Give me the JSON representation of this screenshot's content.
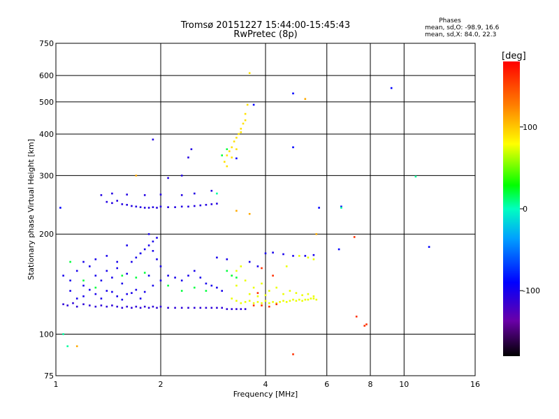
{
  "chart_data": {
    "type": "scatter",
    "title": "Tromsø 20151227 15:44:00-15:45:43",
    "subtitle": "RwPretec (8p)",
    "xlabel": "Frequency [MHz]",
    "ylabel": "Stationary phase Virtual Height [km]",
    "x_scale": "log",
    "y_scale": "log",
    "xlim": [
      1,
      16
    ],
    "ylim": [
      75,
      750
    ],
    "x_ticks": [
      1,
      2,
      4,
      6,
      8,
      10,
      16
    ],
    "x_tick_labels": [
      "1",
      "2",
      "4",
      "6",
      "8",
      "10",
      "16"
    ],
    "y_ticks": [
      75,
      100,
      200,
      300,
      400,
      500,
      600,
      750
    ],
    "y_tick_labels": [
      "75",
      "100",
      "200",
      "300",
      "400",
      "500",
      "600",
      "750"
    ],
    "grid": true,
    "info": {
      "heading": "Phases",
      "line1": "mean, sd,O: -98.9, 16.6",
      "line2": "mean, sd,X:  84.0, 22.3"
    },
    "colorbar": {
      "label": "[deg]",
      "range": [
        -180,
        180
      ],
      "ticks": [
        100,
        0,
        -100
      ],
      "tick_labels": [
        "100",
        "0",
        "-100"
      ]
    },
    "clusters": [
      {
        "name": "lower-O-trace",
        "color_phase": -110,
        "points": [
          [
            1.05,
            123
          ],
          [
            1.08,
            122
          ],
          [
            1.12,
            124
          ],
          [
            1.15,
            121
          ],
          [
            1.2,
            123
          ],
          [
            1.25,
            122
          ],
          [
            1.3,
            121
          ],
          [
            1.35,
            122
          ],
          [
            1.4,
            121
          ],
          [
            1.45,
            122
          ],
          [
            1.5,
            121
          ],
          [
            1.55,
            120
          ],
          [
            1.6,
            121
          ],
          [
            1.65,
            120
          ],
          [
            1.7,
            121
          ],
          [
            1.75,
            120
          ],
          [
            1.8,
            121
          ],
          [
            1.85,
            120
          ],
          [
            1.9,
            121
          ],
          [
            1.95,
            120
          ],
          [
            2.0,
            121
          ],
          [
            2.1,
            120
          ],
          [
            2.2,
            120
          ],
          [
            2.3,
            120
          ],
          [
            2.4,
            120
          ],
          [
            2.5,
            120
          ],
          [
            2.6,
            120
          ],
          [
            2.7,
            120
          ],
          [
            2.8,
            120
          ],
          [
            2.9,
            120
          ],
          [
            3.0,
            120
          ],
          [
            3.1,
            119
          ],
          [
            3.2,
            119
          ],
          [
            3.3,
            119
          ],
          [
            3.4,
            119
          ],
          [
            3.5,
            119
          ]
        ]
      },
      {
        "name": "F-trace-250",
        "color_phase": -105,
        "points": [
          [
            1.4,
            250
          ],
          [
            1.45,
            248
          ],
          [
            1.5,
            252
          ],
          [
            1.55,
            246
          ],
          [
            1.6,
            245
          ],
          [
            1.65,
            243
          ],
          [
            1.7,
            242
          ],
          [
            1.75,
            241
          ],
          [
            1.8,
            240
          ],
          [
            1.85,
            240
          ],
          [
            1.9,
            241
          ],
          [
            1.95,
            240
          ],
          [
            2.0,
            242
          ],
          [
            2.1,
            241
          ],
          [
            2.2,
            241
          ],
          [
            2.3,
            242
          ],
          [
            2.4,
            242
          ],
          [
            2.5,
            243
          ],
          [
            2.6,
            244
          ],
          [
            2.7,
            245
          ],
          [
            2.8,
            246
          ],
          [
            2.9,
            247
          ],
          [
            1.35,
            262
          ],
          [
            1.45,
            265
          ],
          [
            1.6,
            263
          ],
          [
            1.8,
            262
          ],
          [
            2.0,
            263
          ],
          [
            2.3,
            262
          ],
          [
            2.5,
            265
          ],
          [
            2.8,
            270
          ],
          [
            2.1,
            295
          ],
          [
            2.3,
            300
          ],
          [
            2.4,
            340
          ],
          [
            2.45,
            360
          ],
          [
            1.9,
            385
          ]
        ]
      },
      {
        "name": "F-trace-X",
        "color_phase": 90,
        "points": [
          [
            3.05,
            330
          ],
          [
            3.1,
            345
          ],
          [
            3.15,
            355
          ],
          [
            3.2,
            365
          ],
          [
            3.25,
            380
          ],
          [
            3.3,
            390
          ],
          [
            3.35,
            400
          ],
          [
            3.4,
            415
          ],
          [
            3.45,
            430
          ],
          [
            3.5,
            460
          ],
          [
            3.55,
            490
          ],
          [
            3.1,
            320
          ],
          [
            3.2,
            340
          ],
          [
            3.3,
            360
          ],
          [
            3.4,
            405
          ],
          [
            3.5,
            440
          ],
          [
            3.6,
            610
          ]
        ]
      },
      {
        "name": "mid-O-band",
        "color_phase": -100,
        "points": [
          [
            1.05,
            150
          ],
          [
            1.1,
            145
          ],
          [
            1.15,
            155
          ],
          [
            1.2,
            140
          ],
          [
            1.25,
            160
          ],
          [
            1.3,
            150
          ],
          [
            1.35,
            145
          ],
          [
            1.4,
            155
          ],
          [
            1.45,
            148
          ],
          [
            1.5,
            158
          ],
          [
            1.55,
            142
          ],
          [
            1.6,
            152
          ],
          [
            1.65,
            165
          ],
          [
            1.7,
            170
          ],
          [
            1.75,
            175
          ],
          [
            1.8,
            180
          ],
          [
            1.85,
            185
          ],
          [
            1.9,
            178
          ],
          [
            1.95,
            168
          ],
          [
            2.0,
            160
          ],
          [
            1.2,
            130
          ],
          [
            1.3,
            132
          ],
          [
            1.4,
            135
          ],
          [
            1.5,
            130
          ],
          [
            1.6,
            132
          ],
          [
            1.7,
            136
          ],
          [
            1.8,
            134
          ],
          [
            1.9,
            140
          ],
          [
            2.0,
            145
          ],
          [
            2.1,
            150
          ],
          [
            2.2,
            148
          ],
          [
            2.3,
            145
          ],
          [
            2.4,
            150
          ],
          [
            2.5,
            155
          ],
          [
            2.6,
            148
          ],
          [
            2.7,
            142
          ],
          [
            2.8,
            140
          ],
          [
            2.9,
            138
          ],
          [
            3.0,
            135
          ],
          [
            1.1,
            135
          ],
          [
            1.15,
            128
          ],
          [
            1.25,
            136
          ],
          [
            1.35,
            128
          ],
          [
            1.45,
            134
          ],
          [
            1.55,
            127
          ],
          [
            1.65,
            133
          ],
          [
            1.75,
            128
          ],
          [
            1.85,
            150
          ],
          [
            1.9,
            190
          ],
          [
            1.95,
            195
          ],
          [
            1.85,
            200
          ],
          [
            1.75,
            175
          ],
          [
            1.6,
            185
          ],
          [
            1.5,
            165
          ],
          [
            1.4,
            172
          ],
          [
            1.3,
            168
          ],
          [
            1.2,
            165
          ],
          [
            4.0,
            175
          ],
          [
            4.2,
            176
          ],
          [
            4.5,
            174
          ],
          [
            4.8,
            172
          ],
          [
            5.2,
            172
          ],
          [
            5.5,
            173
          ],
          [
            3.8,
            160
          ],
          [
            3.6,
            165
          ],
          [
            2.9,
            170
          ],
          [
            3.1,
            168
          ]
        ]
      },
      {
        "name": "mid-X-band",
        "color_phase": 75,
        "points": [
          [
            3.2,
            128
          ],
          [
            3.3,
            126
          ],
          [
            3.4,
            124
          ],
          [
            3.5,
            125
          ],
          [
            3.6,
            126
          ],
          [
            3.7,
            124
          ],
          [
            3.8,
            125
          ],
          [
            3.9,
            124
          ],
          [
            4.0,
            126
          ],
          [
            4.1,
            124
          ],
          [
            4.2,
            125
          ],
          [
            4.3,
            124
          ],
          [
            4.4,
            125
          ],
          [
            4.5,
            126
          ],
          [
            4.6,
            125
          ],
          [
            4.7,
            126
          ],
          [
            4.8,
            127
          ],
          [
            4.9,
            126
          ],
          [
            5.0,
            127
          ],
          [
            5.1,
            126
          ],
          [
            5.2,
            127
          ],
          [
            5.3,
            127
          ],
          [
            5.4,
            128
          ],
          [
            5.5,
            128
          ],
          [
            5.6,
            127
          ],
          [
            3.3,
            140
          ],
          [
            3.5,
            145
          ],
          [
            3.7,
            138
          ],
          [
            3.9,
            142
          ],
          [
            4.1,
            135
          ],
          [
            4.3,
            138
          ],
          [
            4.5,
            132
          ],
          [
            4.7,
            135
          ],
          [
            4.9,
            133
          ],
          [
            5.1,
            131
          ],
          [
            5.3,
            132
          ],
          [
            5.5,
            130
          ],
          [
            3.2,
            150
          ],
          [
            3.3,
            155
          ],
          [
            3.4,
            160
          ],
          [
            4.6,
            160
          ],
          [
            5.0,
            172
          ],
          [
            5.3,
            170
          ],
          [
            5.5,
            168
          ],
          [
            3.6,
            132
          ],
          [
            3.8,
            130
          ],
          [
            4.0,
            131
          ]
        ]
      },
      {
        "name": "green-scatter",
        "color_phase": 20,
        "points": [
          [
            1.2,
            145
          ],
          [
            1.3,
            138
          ],
          [
            1.55,
            150
          ],
          [
            1.7,
            148
          ],
          [
            1.8,
            153
          ],
          [
            2.1,
            140
          ],
          [
            2.3,
            135
          ],
          [
            2.5,
            138
          ],
          [
            2.7,
            135
          ],
          [
            3.1,
            155
          ],
          [
            3.2,
            150
          ],
          [
            3.3,
            148
          ],
          [
            3.0,
            345
          ],
          [
            3.1,
            360
          ],
          [
            1.1,
            165
          ]
        ]
      },
      {
        "name": "red-scatter",
        "color_phase": 160,
        "points": [
          [
            3.7,
            122
          ],
          [
            3.9,
            122
          ],
          [
            4.1,
            121
          ],
          [
            4.3,
            123
          ],
          [
            3.8,
            133
          ],
          [
            4.2,
            150
          ],
          [
            3.9,
            158
          ],
          [
            7.2,
            196
          ],
          [
            7.3,
            113
          ],
          [
            7.8,
            107
          ],
          [
            7.7,
            106
          ],
          [
            4.8,
            87
          ]
        ]
      },
      {
        "name": "isolated",
        "color_phase": -90,
        "points": [
          [
            9.2,
            550
          ],
          [
            4.8,
            530
          ],
          [
            4.8,
            365
          ],
          [
            5.7,
            240
          ],
          [
            6.6,
            242
          ],
          [
            11.8,
            183
          ],
          [
            6.5,
            180
          ],
          [
            3.7,
            490
          ],
          [
            1.03,
            240
          ],
          [
            3.3,
            338
          ]
        ]
      },
      {
        "name": "isolated-cyan",
        "color_phase": 5,
        "points": [
          [
            10.8,
            298
          ],
          [
            6.6,
            240
          ],
          [
            1.05,
            100
          ],
          [
            1.08,
            92
          ],
          [
            2.9,
            265
          ]
        ]
      },
      {
        "name": "isolated-warm",
        "color_phase": 110,
        "points": [
          [
            5.2,
            510
          ],
          [
            3.3,
            235
          ],
          [
            3.6,
            230
          ],
          [
            5.6,
            200
          ],
          [
            1.15,
            92
          ],
          [
            1.7,
            300
          ]
        ]
      }
    ]
  }
}
